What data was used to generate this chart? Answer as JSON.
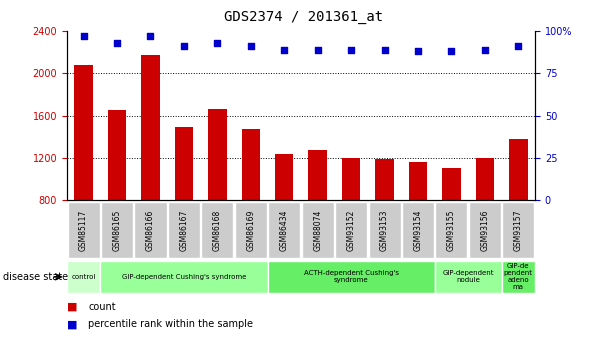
{
  "title": "GDS2374 / 201361_at",
  "samples": [
    "GSM85117",
    "GSM86165",
    "GSM86166",
    "GSM86167",
    "GSM86168",
    "GSM86169",
    "GSM86434",
    "GSM88074",
    "GSM93152",
    "GSM93153",
    "GSM93154",
    "GSM93155",
    "GSM93156",
    "GSM93157"
  ],
  "counts": [
    2080,
    1650,
    2170,
    1490,
    1660,
    1470,
    1240,
    1270,
    1200,
    1185,
    1160,
    1100,
    1200,
    1380
  ],
  "percentiles": [
    97,
    93,
    97,
    91,
    93,
    91,
    89,
    89,
    89,
    89,
    88,
    88,
    89,
    91
  ],
  "ylim_left": [
    800,
    2400
  ],
  "ylim_right": [
    0,
    100
  ],
  "yticks_left": [
    800,
    1200,
    1600,
    2000,
    2400
  ],
  "yticks_right": [
    0,
    25,
    50,
    75,
    100
  ],
  "grid_values": [
    1200,
    1600,
    2000
  ],
  "bar_color": "#cc0000",
  "dot_color": "#0000cc",
  "disease_groups": [
    {
      "label": "control",
      "start": 0,
      "end": 1,
      "color": "#ccffcc"
    },
    {
      "label": "GIP-dependent Cushing's syndrome",
      "start": 1,
      "end": 6,
      "color": "#99ff99"
    },
    {
      "label": "ACTH-dependent Cushing's\nsyndrome",
      "start": 6,
      "end": 11,
      "color": "#66ee66"
    },
    {
      "label": "GIP-dependent\nnodule",
      "start": 11,
      "end": 13,
      "color": "#99ff99"
    },
    {
      "label": "GIP-de\npendent\nadeno\nma",
      "start": 13,
      "end": 14,
      "color": "#66ee66"
    }
  ],
  "disease_state_label": "disease state",
  "background_color": "#ffffff",
  "tick_label_bg": "#cccccc"
}
